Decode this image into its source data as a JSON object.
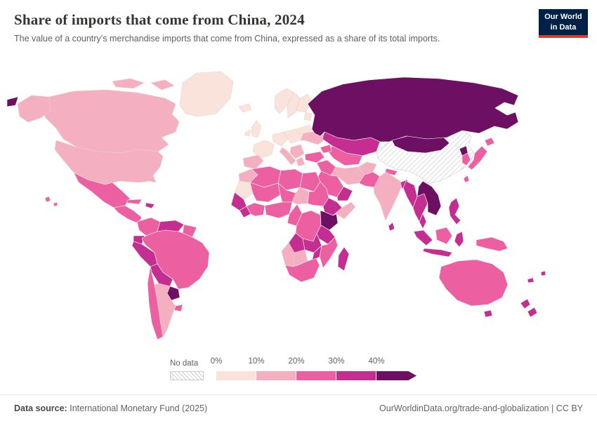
{
  "header": {
    "title": "Share of imports that come from China, 2024",
    "subtitle": "The value of a country’s merchandise imports that come from China, expressed as a share of its total imports.",
    "logo": {
      "line1": "Our World",
      "line2": "in Data",
      "bg": "#002147",
      "accent": "#dc3b2f"
    }
  },
  "footer": {
    "datasource_label": "Data source:",
    "datasource_value": "International Monetary Fund (2025)",
    "credit": "OurWorldinData.org/trade-and-globalization | CC BY"
  },
  "chart_data": {
    "type": "heatmap",
    "map_type": "world-choropleth",
    "title": "Share of imports that come from China, 2024",
    "subtitle": "The value of a country’s merchandise imports that come from China, expressed as a share of its total imports.",
    "unit": "% of total merchandise imports",
    "legend": {
      "no_data_label": "No data",
      "tick_labels": [
        "0%",
        "10%",
        "20%",
        "30%",
        "40%"
      ],
      "bins": [
        {
          "tick": "0%",
          "range": "0–10%",
          "color": "#f9e3db"
        },
        {
          "tick": "10%",
          "range": "10–20%",
          "color": "#f4afc0"
        },
        {
          "tick": "20%",
          "range": "20–30%",
          "color": "#ec5fa1"
        },
        {
          "tick": "30%",
          "range": "30–40%",
          "color": "#c42e90"
        },
        {
          "tick": "40%",
          "range": "40%+",
          "color": "#6d1064",
          "arrow": true
        }
      ]
    },
    "regions": [
      {
        "id": "greenland",
        "name": "Greenland",
        "bin": 0
      },
      {
        "id": "iceland",
        "name": "Iceland",
        "bin": 0
      },
      {
        "id": "canada",
        "name": "Canada",
        "bin": 1
      },
      {
        "id": "arctic-islands-west",
        "name": "Arctic Islands",
        "bin": 1
      },
      {
        "id": "arctic-islands-east",
        "name": "Arctic Islands",
        "bin": 1
      },
      {
        "id": "alaska",
        "name": "Alaska (US)",
        "bin": 1
      },
      {
        "id": "united-states",
        "name": "United States",
        "bin": 1
      },
      {
        "id": "mexico",
        "name": "Mexico",
        "bin": 2
      },
      {
        "id": "central-america",
        "name": "Central America",
        "bin": 2
      },
      {
        "id": "cuba",
        "name": "Cuba",
        "bin": 2
      },
      {
        "id": "hispaniola",
        "name": "Hispaniola",
        "bin": 3
      },
      {
        "id": "colombia",
        "name": "Colombia",
        "bin": 2
      },
      {
        "id": "venezuela",
        "name": "Venezuela",
        "bin": 3
      },
      {
        "id": "guyana",
        "name": "Guyana & Suriname",
        "bin": 2
      },
      {
        "id": "ecuador",
        "name": "Ecuador",
        "bin": 3
      },
      {
        "id": "peru",
        "name": "Peru",
        "bin": 3
      },
      {
        "id": "brazil",
        "name": "Brazil",
        "bin": 2
      },
      {
        "id": "bolivia",
        "name": "Bolivia",
        "bin": 3
      },
      {
        "id": "paraguay",
        "name": "Paraguay",
        "bin": 4
      },
      {
        "id": "chile",
        "name": "Chile",
        "bin": 2
      },
      {
        "id": "argentina",
        "name": "Argentina",
        "bin": 1
      },
      {
        "id": "uruguay",
        "name": "Uruguay",
        "bin": 2
      },
      {
        "id": "uk",
        "name": "United Kingdom",
        "bin": 0
      },
      {
        "id": "ireland",
        "name": "Ireland",
        "bin": 0
      },
      {
        "id": "norway",
        "name": "Norway",
        "bin": 0
      },
      {
        "id": "sweden",
        "name": "Sweden",
        "bin": 0
      },
      {
        "id": "finland",
        "name": "Finland",
        "bin": 0
      },
      {
        "id": "baltics",
        "name": "Baltics",
        "bin": 0
      },
      {
        "id": "germany",
        "name": "Germany",
        "bin": 0
      },
      {
        "id": "poland",
        "name": "Poland",
        "bin": 0
      },
      {
        "id": "france",
        "name": "France",
        "bin": 0
      },
      {
        "id": "iberia",
        "name": "Spain & Portugal",
        "bin": 1
      },
      {
        "id": "italy",
        "name": "Italy",
        "bin": 1
      },
      {
        "id": "balkans",
        "name": "Balkans",
        "bin": 1
      },
      {
        "id": "greece",
        "name": "Greece",
        "bin": 1
      },
      {
        "id": "belarus",
        "name": "Belarus",
        "bin": 0
      },
      {
        "id": "ukraine",
        "name": "Ukraine",
        "bin": 1
      },
      {
        "id": "russia",
        "name": "Russia",
        "bin": 4
      },
      {
        "id": "chukotka-west",
        "name": "Russia (Chukotka)",
        "bin": 4
      },
      {
        "id": "kazakhstan",
        "name": "Kazakhstan",
        "bin": 3
      },
      {
        "id": "uzbekistan-turkmenistan",
        "name": "Uzbekistan & Turkmenistan",
        "bin": 2
      },
      {
        "id": "caucasus",
        "name": "Caucasus",
        "bin": 2
      },
      {
        "id": "china",
        "name": "China",
        "bin": null
      },
      {
        "id": "mongolia",
        "name": "Mongolia",
        "bin": 4
      },
      {
        "id": "nepal",
        "name": "Nepal",
        "bin": 2
      },
      {
        "id": "turkey",
        "name": "Turkey",
        "bin": 2
      },
      {
        "id": "iraq-syria",
        "name": "Iraq & Syria",
        "bin": 2
      },
      {
        "id": "iran",
        "name": "Iran",
        "bin": 1
      },
      {
        "id": "saudi-arabia",
        "name": "Saudi Arabia",
        "bin": 2
      },
      {
        "id": "yemen-oman",
        "name": "Yemen & Oman",
        "bin": 3
      },
      {
        "id": "afghanistan",
        "name": "Afghanistan",
        "bin": 1
      },
      {
        "id": "pakistan",
        "name": "Pakistan",
        "bin": 2
      },
      {
        "id": "india",
        "name": "India",
        "bin": 1
      },
      {
        "id": "sri-lanka",
        "name": "Sri Lanka",
        "bin": 3
      },
      {
        "id": "bangladesh",
        "name": "Bangladesh",
        "bin": 3
      },
      {
        "id": "myanmar",
        "name": "Myanmar",
        "bin": 3
      },
      {
        "id": "thailand",
        "name": "Thailand",
        "bin": 3
      },
      {
        "id": "indochina",
        "name": "Vietnam, Laos & Cambodia",
        "bin": 4
      },
      {
        "id": "malaysia",
        "name": "Malaysia",
        "bin": 3
      },
      {
        "id": "sumatra",
        "name": "Sumatra (Indonesia)",
        "bin": 3
      },
      {
        "id": "borneo",
        "name": "Borneo",
        "bin": 2
      },
      {
        "id": "java",
        "name": "Java (Indonesia)",
        "bin": 3
      },
      {
        "id": "sulawesi",
        "name": "Sulawesi (Indonesia)",
        "bin": 3
      },
      {
        "id": "philippines",
        "name": "Philippines",
        "bin": 3
      },
      {
        "id": "taiwan",
        "name": "Taiwan",
        "bin": 2
      },
      {
        "id": "north-korea",
        "name": "North Korea",
        "bin": 4
      },
      {
        "id": "south-korea",
        "name": "South Korea",
        "bin": 2
      },
      {
        "id": "japan",
        "name": "Japan",
        "bin": 2
      },
      {
        "id": "hokkaido",
        "name": "Japan (Hokkaido)",
        "bin": 2
      },
      {
        "id": "new-guinea",
        "name": "Papua New Guinea",
        "bin": 2
      },
      {
        "id": "australia",
        "name": "Australia",
        "bin": 2
      },
      {
        "id": "tasmania",
        "name": "Tasmania",
        "bin": 3
      },
      {
        "id": "new-zealand-north",
        "name": "New Zealand (North Island)",
        "bin": 3
      },
      {
        "id": "new-zealand-south",
        "name": "New Zealand (South Island)",
        "bin": 3
      },
      {
        "id": "new-caledonia",
        "name": "New Caledonia",
        "bin": 3
      },
      {
        "id": "fiji",
        "name": "Fiji",
        "bin": 3
      },
      {
        "id": "hawaii-1",
        "name": "Hawaii",
        "bin": 2
      },
      {
        "id": "hawaii-2",
        "name": "Hawaii",
        "bin": 2
      },
      {
        "id": "morocco",
        "name": "Morocco",
        "bin": 1
      },
      {
        "id": "algeria",
        "name": "Algeria",
        "bin": 2
      },
      {
        "id": "libya",
        "name": "Libya",
        "bin": 2
      },
      {
        "id": "egypt",
        "name": "Egypt",
        "bin": 2
      },
      {
        "id": "mauritania",
        "name": "Mauritania",
        "bin": 0
      },
      {
        "id": "mali",
        "name": "Mali",
        "bin": 2
      },
      {
        "id": "niger",
        "name": "Niger",
        "bin": 2
      },
      {
        "id": "chad",
        "name": "Chad",
        "bin": 1
      },
      {
        "id": "sudan",
        "name": "Sudan",
        "bin": 2
      },
      {
        "id": "ethiopia",
        "name": "Ethiopia",
        "bin": 3
      },
      {
        "id": "somalia",
        "name": "Somalia",
        "bin": 1
      },
      {
        "id": "senegal-guinea",
        "name": "Senegal & Guinea",
        "bin": 3
      },
      {
        "id": "sierra-leone-liberia",
        "name": "Sierra Leone & Liberia",
        "bin": 3
      },
      {
        "id": "ivory-coast-ghana",
        "name": "Côte d’Ivoire & Ghana",
        "bin": 2
      },
      {
        "id": "nigeria",
        "name": "Nigeria",
        "bin": 2
      },
      {
        "id": "cameroon-gabon",
        "name": "Cameroon & Gabon",
        "bin": 2
      },
      {
        "id": "dr-congo",
        "name": "DR Congo",
        "bin": 2
      },
      {
        "id": "kenya-uganda",
        "name": "Kenya & Uganda",
        "bin": 4
      },
      {
        "id": "tanzania",
        "name": "Tanzania",
        "bin": 3
      },
      {
        "id": "angola",
        "name": "Angola",
        "bin": 3
      },
      {
        "id": "zambia",
        "name": "Zambia",
        "bin": 3
      },
      {
        "id": "mozambique",
        "name": "Mozambique",
        "bin": 2
      },
      {
        "id": "zimbabwe",
        "name": "Zimbabwe",
        "bin": 3
      },
      {
        "id": "namibia",
        "name": "Namibia",
        "bin": 1
      },
      {
        "id": "botswana",
        "name": "Botswana",
        "bin": 1
      },
      {
        "id": "south-africa",
        "name": "South Africa",
        "bin": 2
      },
      {
        "id": "madagascar",
        "name": "Madagascar",
        "bin": 3
      }
    ]
  }
}
